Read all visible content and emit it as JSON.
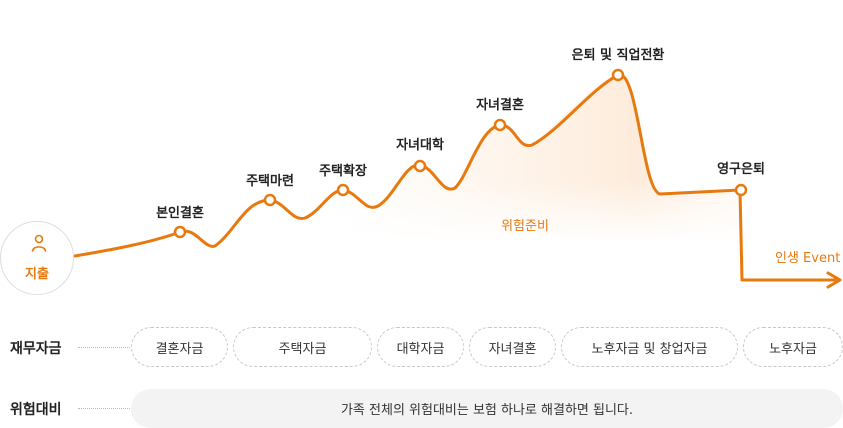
{
  "start": {
    "label": "지출",
    "icon": "person-icon"
  },
  "milestones": [
    {
      "id": "marriage",
      "label": "본인결혼"
    },
    {
      "id": "housing",
      "label": "주택마련"
    },
    {
      "id": "expansion",
      "label": "주택확장"
    },
    {
      "id": "child-college",
      "label": "자녀대학"
    },
    {
      "id": "child-marriage",
      "label": "자녀결혼"
    },
    {
      "id": "retire",
      "label": "은퇴 및 직업전환"
    },
    {
      "id": "permanent-retire",
      "label": "영구은퇴"
    }
  ],
  "risk_center_label": "위험준비",
  "axis_label": "인생 Event",
  "rows": {
    "funds": {
      "title": "재무자금",
      "items": [
        "결혼자금",
        "주택자금",
        "대학자금",
        "자녀결혼",
        "노후자금 및 창업자금",
        "노후자금"
      ]
    },
    "risk": {
      "title": "위험대비",
      "text": "가족 전체의 위험대비는 보험 하나로 해결하면 됩니다."
    }
  },
  "colors": {
    "accent": "#e8790f",
    "area_fill_start": "#fdebd9",
    "text": "#222222",
    "pill_border": "#c8c8c8",
    "risk_bar_bg": "#f3f3f3"
  }
}
